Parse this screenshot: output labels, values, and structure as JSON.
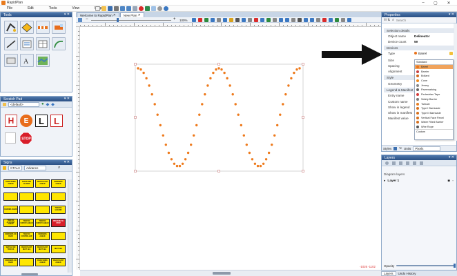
{
  "app": {
    "title": "RapidPlan"
  },
  "menu": [
    "File",
    "Edit",
    "Tools",
    "View",
    "Help"
  ],
  "tools_panel": {
    "title": "Tools"
  },
  "scratch_panel": {
    "title": "Scratch Pad",
    "dropdown_value": "<default>"
  },
  "signs_panel": {
    "title": "Signs",
    "filter_value": "CTAL3",
    "filter_mode": "Advance",
    "signs": [
      {
        "text": "ROAD WORK AHEAD",
        "color": "#ffe600"
      },
      {
        "text": "SHOULDER CLOSED",
        "color": "#ffe600"
      },
      {
        "text": "ROAD PLANT AHEAD",
        "color": "#ffe600"
      },
      {
        "text": "WORKERS AHEAD",
        "color": "#ffe600"
      },
      {
        "text": "",
        "color": "#ffe600"
      },
      {
        "text": "",
        "color": "#ffe600"
      },
      {
        "text": "",
        "color": "#ffe600"
      },
      {
        "text": "",
        "color": "#ffe600"
      },
      {
        "text": "GRADER AHEAD",
        "color": "#ffe600"
      },
      {
        "text": "",
        "color": "#ffe600"
      },
      {
        "text": "",
        "color": "#ffe600"
      },
      {
        "text": "TRAFFIC HAZARD",
        "color": "#ffe600"
      },
      {
        "text": "TRAFFIC ACCIDENT AHEAD",
        "color": "#ffe600"
      },
      {
        "text": "TRAFFIC SURVEY AHEAD",
        "color": "#ffe600"
      },
      {
        "text": "TRAFFIC SURVEY AHEAD",
        "color": "#ffe600"
      },
      {
        "text": "PREPARE TO STOP",
        "color": "#d81e2a"
      },
      {
        "text": "WORKERS ON ROAD",
        "color": "#ffe600"
      },
      {
        "text": "TRAFFIC CONTROLLER",
        "color": "#ffe600"
      },
      {
        "text": "WORKERS AHEAD",
        "color": "#ffe600"
      },
      {
        "text": "",
        "color": "#ffe600"
      },
      {
        "text": "WATCH FOR TRUCKS",
        "color": "#ffe600"
      },
      {
        "text": "ROAD PLANT NEXT 1km",
        "color": "#ffe600"
      },
      {
        "text": "ROAD PLANT NEXT 2km",
        "color": "#ffe600"
      },
      {
        "text": "NEXT 2km",
        "color": "#ffe600"
      },
      {
        "text": "WORKERS ON ROAD",
        "color": "#ffe600"
      },
      {
        "text": "",
        "color": "#ffe600"
      },
      {
        "text": "ROAD WORK AHEAD",
        "color": "#ffe600"
      },
      {
        "text": "ROAD PLANT AHEAD",
        "color": "#ffe600"
      }
    ]
  },
  "doc_tabs": [
    "Welcome to RapidPlan",
    "New Plan"
  ],
  "canvas": {
    "zoom": "100%",
    "coords": "-1026 -1102"
  },
  "properties": {
    "title": "Properties",
    "search_placeholder": "Search",
    "selection_section": "Selection details",
    "object_name_label": "Object name",
    "object_name_value": "Delineator",
    "device_count_label": "Device count",
    "device_count_value": "59",
    "devices_section": "Devices",
    "type_label": "Type",
    "type_value": "Barrel",
    "size_label": "Size",
    "spacing_label": "Spacing",
    "alignment_label": "Alignment",
    "style_section": "Style",
    "geometry_label": "Geometry",
    "legend_section": "Legend & Manifest",
    "entry_name_label": "Entry name",
    "custom_name_label": "Custom name",
    "show_legend_label": "Show in legend",
    "show_manifest_label": "Show in manifest",
    "manifest_value_label": "Manifest value",
    "styles_label": "Styles",
    "units_label": "Units",
    "units_value": "Pixels"
  },
  "type_dropdown": {
    "group_label": "Standard",
    "items": [
      {
        "label": "Barrel",
        "color": "#e8731c",
        "selected": true
      },
      {
        "label": "Barrier",
        "color": "#c94040",
        "selected": false
      },
      {
        "label": "Bollard",
        "color": "#d36a1e",
        "selected": false
      },
      {
        "label": "Cone",
        "color": "#f08a1c",
        "selected": false
      },
      {
        "label": "Jersey",
        "color": "#888888",
        "selected": false
      },
      {
        "label": "Pavemarking",
        "color": "#666666",
        "selected": false
      },
      {
        "label": "Pedestrian Tape",
        "color": "#d43b3b",
        "selected": false
      },
      {
        "label": "Safety Barrier",
        "color": "#7a7a7a",
        "selected": false
      },
      {
        "label": "Tubular",
        "color": "#e67e22",
        "selected": false
      },
      {
        "label": "Type I Barricade",
        "color": "#d66f1d",
        "selected": false
      },
      {
        "label": "Type II Barricade",
        "color": "#d66f1d",
        "selected": false
      },
      {
        "label": "Vertical Face Panel",
        "color": "#d66f1d",
        "selected": false
      },
      {
        "label": "Water Filled Barrier",
        "color": "#d66f1d",
        "selected": false
      },
      {
        "label": "Wire Rope",
        "color": "#555555",
        "selected": false
      }
    ],
    "custom_label": "Custom"
  },
  "layers": {
    "title": "Layers",
    "header": "Diagram layers",
    "items": [
      {
        "name": "Layer 1"
      }
    ],
    "opacity_label": "Opacity"
  },
  "bottom_tabs": [
    "Layers",
    "Undo History"
  ]
}
